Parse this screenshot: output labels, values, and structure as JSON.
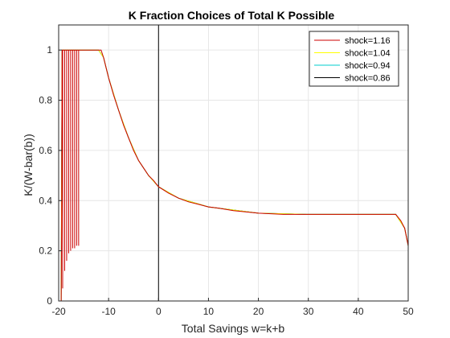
{
  "chart_data": {
    "type": "line",
    "title": "K Fraction Choices of Total K Possible",
    "xlabel": "Total Savings w=k+b",
    "ylabel": "K/(W-bar(b))",
    "xlim": [
      -20,
      50
    ],
    "ylim": [
      0,
      1.1
    ],
    "grid": true,
    "legend_position": "top-right",
    "xticks": [
      "-20",
      "-10",
      "0",
      "10",
      "20",
      "30",
      "40",
      "50"
    ],
    "yticks": [
      "0",
      "0.2",
      "0.4",
      "0.6",
      "0.8",
      "1"
    ],
    "vertical_reference_x": 0,
    "series": [
      {
        "name": "shock=1.16",
        "color": "#cc0000",
        "x": [
          -19.5,
          -19.4,
          -19.3,
          -19.0,
          -18.5,
          -18.0,
          -17.0,
          -16.0,
          -15.0,
          -14.0,
          -13.0,
          -12.0,
          -11.5,
          -11.0,
          -10.5,
          -10.0,
          -9.0,
          -8.0,
          -7.0,
          -6.0,
          -5.0,
          -4.0,
          -3.0,
          -2.0,
          -1.0,
          0.0,
          2.0,
          4.0,
          6.0,
          8.0,
          10.0,
          12.0,
          15.0,
          20.0,
          25.0,
          30.0,
          35.0,
          40.0,
          45.0,
          47.5,
          48.5,
          49.3,
          50.0
        ],
        "y": [
          0.0,
          0.3,
          1.0,
          1.0,
          1.0,
          1.0,
          1.0,
          1.0,
          1.0,
          1.0,
          1.0,
          1.0,
          1.0,
          0.97,
          0.93,
          0.89,
          0.82,
          0.76,
          0.7,
          0.65,
          0.6,
          0.56,
          0.53,
          0.5,
          0.48,
          0.455,
          0.43,
          0.41,
          0.395,
          0.385,
          0.375,
          0.37,
          0.36,
          0.35,
          0.345,
          0.345,
          0.345,
          0.345,
          0.345,
          0.345,
          0.32,
          0.29,
          0.22
        ]
      },
      {
        "name": "shock=1.04",
        "color": "#ffff00",
        "x": [
          -19.5,
          -19.3,
          -19.0,
          -12.0,
          -11.0,
          -10.0,
          -8.0,
          -6.0,
          -4.0,
          -2.0,
          0.0,
          4.0,
          10.0,
          20.0,
          30.0,
          47.5,
          49.3,
          50.0
        ],
        "y": [
          0.0,
          1.0,
          1.0,
          1.0,
          0.97,
          0.89,
          0.76,
          0.65,
          0.56,
          0.5,
          0.455,
          0.41,
          0.375,
          0.35,
          0.345,
          0.345,
          0.29,
          0.22
        ]
      },
      {
        "name": "shock=0.94",
        "color": "#00cccc",
        "x": [
          -19.5,
          -19.3,
          -19.0,
          -12.0,
          -11.0,
          -10.0,
          -8.0,
          -6.0,
          -4.0,
          -2.0,
          0.0,
          4.0,
          10.0,
          20.0,
          30.0,
          47.5,
          49.3,
          50.0
        ],
        "y": [
          0.0,
          1.0,
          1.0,
          1.0,
          0.97,
          0.89,
          0.76,
          0.65,
          0.56,
          0.5,
          0.455,
          0.41,
          0.375,
          0.35,
          0.345,
          0.345,
          0.29,
          0.22
        ]
      },
      {
        "name": "shock=0.86",
        "color": "#000000",
        "x": [
          -19.5,
          -19.3,
          -19.0,
          -12.0,
          -11.0,
          -10.0,
          -8.0,
          -6.0,
          -4.0,
          -2.0,
          0.0,
          4.0,
          10.0,
          20.0,
          30.0,
          47.5,
          49.3,
          50.0
        ],
        "y": [
          0.0,
          1.0,
          1.0,
          1.0,
          0.97,
          0.89,
          0.76,
          0.65,
          0.56,
          0.5,
          0.455,
          0.41,
          0.375,
          0.35,
          0.345,
          0.345,
          0.29,
          0.22
        ]
      }
    ],
    "oscillation_spikes": {
      "note_series": "shock=1.16",
      "x": [
        -19.2,
        -18.8,
        -18.4,
        -18.0,
        -17.6,
        -17.2,
        -16.8,
        -16.4,
        -16.0
      ],
      "low_y": [
        0.05,
        0.12,
        0.16,
        0.19,
        0.2,
        0.21,
        0.21,
        0.22,
        0.22
      ]
    }
  }
}
